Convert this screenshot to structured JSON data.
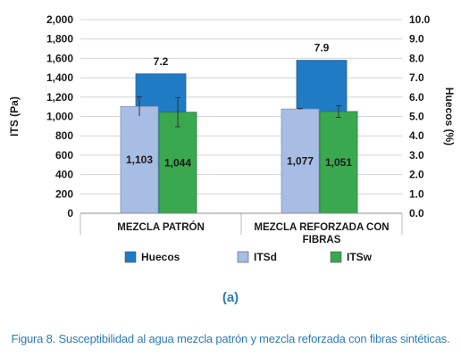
{
  "colors": {
    "huecos": "#1f7bc4",
    "itsd": "#a8bde4",
    "itsw": "#3aa84f",
    "panel_label": "#2c7bb6",
    "caption": "#2c7bb6",
    "grid": "#d4d4d4",
    "text": "#1a1a1a"
  },
  "panel_label": "(a)",
  "caption": "Figura 8. Susceptibilidad al agua mezcla patrón y mezcla reforzada con fibras sintéticas.",
  "chart_data": {
    "type": "bar",
    "categories": [
      [
        "MEZCLA PATRÓN"
      ],
      [
        "MEZCLA REFORZADA CON",
        "FIBRAS"
      ]
    ],
    "series": [
      {
        "name": "Huecos",
        "axis": "right",
        "values": [
          7.2,
          7.9
        ],
        "labels": [
          "7.2",
          "7.9"
        ],
        "label_position": "above",
        "color_key": "huecos"
      },
      {
        "name": "ITSd",
        "axis": "left",
        "values": [
          1103,
          1077
        ],
        "labels": [
          "1,103",
          "1,077"
        ],
        "label_position": "inside",
        "error": [
          100,
          5
        ],
        "color_key": "itsd"
      },
      {
        "name": "ITSw",
        "axis": "left",
        "values": [
          1044,
          1051
        ],
        "labels": [
          "1,044",
          "1,051"
        ],
        "label_position": "inside",
        "error": [
          150,
          60
        ],
        "color_key": "itsw"
      }
    ],
    "ylabel": "ITS (Pa)",
    "y2label": "Huecos (%)",
    "ylim": [
      0,
      2000
    ],
    "y2lim": [
      0,
      10
    ],
    "yticks": [
      "0",
      "200",
      "400",
      "600",
      "800",
      "1,000",
      "1,200",
      "1,400",
      "1,600",
      "1,800",
      "2,000"
    ],
    "y2ticks": [
      "0.0",
      "1.0",
      "2.0",
      "3.0",
      "4.0",
      "5.0",
      "6.0",
      "7.0",
      "8.0",
      "9.0",
      "10.0"
    ],
    "grid": true,
    "legend_position": "bottom"
  }
}
